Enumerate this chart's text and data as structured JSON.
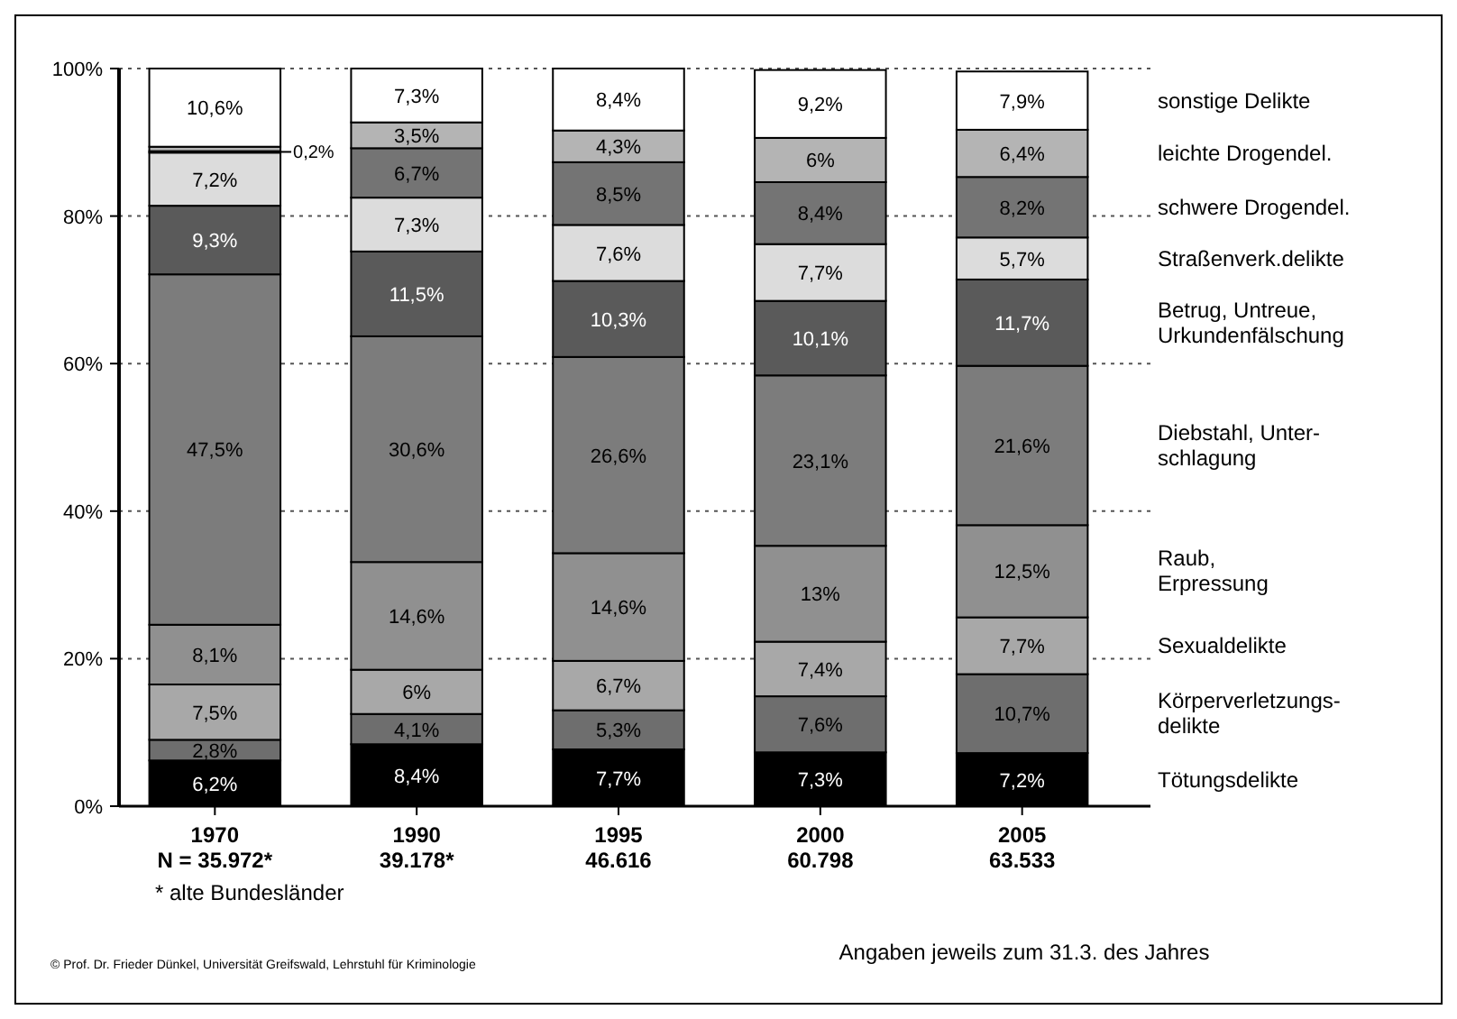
{
  "chart_data": {
    "type": "bar",
    "stacked": true,
    "categories": [
      "1970\nN = 35.972*",
      "1990\n39.178*",
      "1995\n46.616",
      "2000\n60.798",
      "2005\n63.533"
    ],
    "ylim": [
      0,
      100
    ],
    "yticks": [
      {
        "value": 0,
        "label": "0%"
      },
      {
        "value": 20,
        "label": "20%"
      },
      {
        "value": 40,
        "label": "40%"
      },
      {
        "value": 60,
        "label": "60%"
      },
      {
        "value": 80,
        "label": "80%"
      },
      {
        "value": 100,
        "label": "100%"
      }
    ],
    "grid": "y",
    "series": [
      {
        "name": "Tötungsdelikte",
        "color": "#000000",
        "values": [
          6.2,
          8.4,
          7.7,
          7.3,
          7.2
        ],
        "value_labels": [
          "6,2%",
          "8,4%",
          "7,7%",
          "7,3%",
          "7,2%"
        ]
      },
      {
        "name": "Körperverletzungs-\ndelikte",
        "color": "#6e6e6e",
        "values": [
          2.8,
          4.1,
          5.3,
          7.6,
          10.7
        ],
        "value_labels": [
          "2,8%",
          "4,1%",
          "5,3%",
          "7,6%",
          "10,7%"
        ]
      },
      {
        "name": "Sexualdelikte",
        "color": "#a8a8a8",
        "values": [
          7.5,
          6,
          6.7,
          7.4,
          7.7
        ],
        "value_labels": [
          "7,5%",
          "6%",
          "6,7%",
          "7,4%",
          "7,7%"
        ]
      },
      {
        "name": "Raub,\nErpressung",
        "color": "#909090",
        "values": [
          8.1,
          14.6,
          14.6,
          13,
          12.5
        ],
        "value_labels": [
          "8,1%",
          "14,6%",
          "14,6%",
          "13%",
          "12,5%"
        ]
      },
      {
        "name": "Diebstahl, Unter-\nschlagung",
        "color": "#7c7c7c",
        "values": [
          47.5,
          30.6,
          26.6,
          23.1,
          21.6
        ],
        "value_labels": [
          "47,5%",
          "30,6%",
          "26,6%",
          "23,1%",
          "21,6%"
        ]
      },
      {
        "name": "Betrug, Untreue,\nUrkundenfälschung",
        "color": "#5a5a5a",
        "values": [
          9.3,
          11.5,
          10.3,
          10.1,
          11.7
        ],
        "value_labels": [
          "9,3%",
          "11,5%",
          "10,3%",
          "10,1%",
          "11,7%"
        ]
      },
      {
        "name": "Straßenverk.delikte",
        "color": "#dcdcdc",
        "values": [
          7.2,
          7.3,
          7.6,
          7.7,
          5.7
        ],
        "value_labels": [
          "7,2%",
          "7,3%",
          "7,6%",
          "7,7%",
          "5,7%"
        ]
      },
      {
        "name": "schwere Drogendel.",
        "color": "#747474",
        "values": [
          0.2,
          6.7,
          8.5,
          8.4,
          8.2
        ],
        "value_labels": [
          "0,2%",
          "6,7%",
          "8,5%",
          "8,4%",
          "8,2%"
        ]
      },
      {
        "name": "leichte Drogendel.",
        "color": "#b4b4b4",
        "values": [
          0.6,
          3.5,
          4.3,
          6,
          6.4
        ],
        "value_labels": [
          null,
          "3,5%",
          "4,3%",
          "6%",
          "6,4%"
        ]
      },
      {
        "name": "sonstige Delikte",
        "color": "#ffffff",
        "values": [
          10.6,
          7.3,
          8.4,
          9.2,
          7.9
        ],
        "value_labels": [
          "10,6%",
          "7,3%",
          "8,4%",
          "9,2%",
          "7,9%"
        ]
      }
    ],
    "annotations": [
      "* alte Bundesländer",
      "© Prof. Dr. Frieder Dünkel, Universität Greifswald, Lehrstuhl für Kriminologie",
      "Angaben jeweils zum 31.3. des Jahres"
    ]
  }
}
